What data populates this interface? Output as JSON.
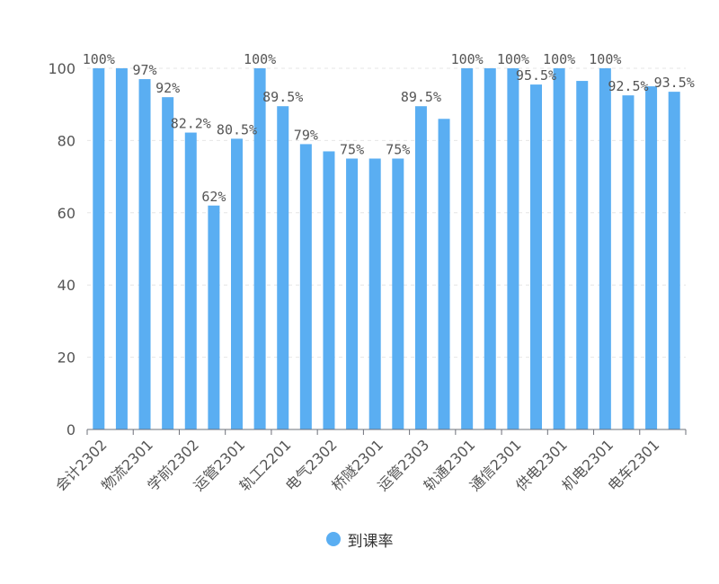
{
  "chart_data": {
    "type": "bar",
    "ylim": [
      0,
      100
    ],
    "y_ticks": [
      0,
      20,
      40,
      60,
      80,
      100
    ],
    "grid": true,
    "legend_position": "bottom-center",
    "bar_color": "#5aaef2",
    "categories": [
      "会计2302",
      "",
      "物流2301",
      "",
      "学前2302",
      "",
      "运管2301",
      "",
      "轨工2201",
      "",
      "电气2302",
      "",
      "桥隧2301",
      "",
      "运管2303",
      "",
      "轨通2301",
      "",
      "通信2301",
      "",
      "供电2301",
      "",
      "机电2301",
      "",
      "电车2301",
      ""
    ],
    "series": [
      {
        "name": "到课率",
        "values": [
          100,
          100,
          97,
          92,
          82.2,
          62,
          80.5,
          100,
          89.5,
          79,
          77,
          75,
          75,
          75,
          89.5,
          86,
          100,
          100,
          100,
          95.5,
          100,
          96.5,
          100,
          92.5,
          95,
          93.5
        ],
        "labels": [
          "100%",
          "",
          "97%",
          "92%",
          "82.2%",
          "62%",
          "80.5%",
          "100%",
          "89.5%",
          "79%",
          "",
          "75%",
          "",
          "75%",
          "89.5%",
          "",
          "100%",
          "",
          "100%",
          "95.5%",
          "100%",
          "",
          "100%",
          "92.5%",
          "",
          "93.5%"
        ]
      }
    ]
  },
  "legend": {
    "items": [
      {
        "label": "到课率"
      }
    ]
  }
}
